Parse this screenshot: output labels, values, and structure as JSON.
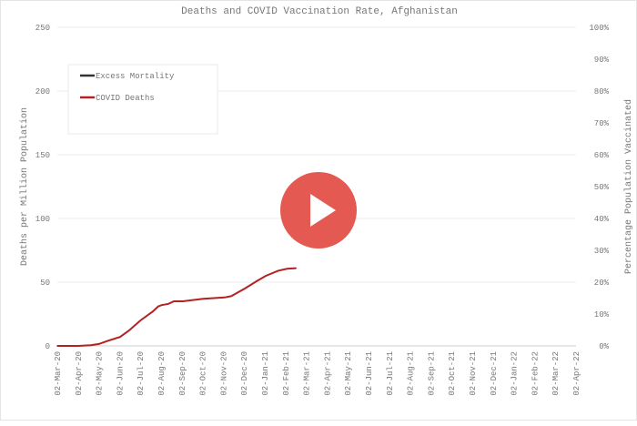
{
  "chart_data": {
    "type": "line",
    "title": "Deaths and COVID Vaccination Rate, Afghanistan",
    "ylabel": "Deaths per Million Population",
    "y2label": "Percentage Population Vaccinated",
    "ylim": [
      0,
      250
    ],
    "yticks": [
      "0",
      "50",
      "100",
      "150",
      "200",
      "250"
    ],
    "y2lim": [
      0,
      100
    ],
    "y2ticks": [
      "0%",
      "10%",
      "20%",
      "30%",
      "40%",
      "50%",
      "60%",
      "70%",
      "80%",
      "90%",
      "100%"
    ],
    "xticks": [
      "02-Mar-20",
      "02-Apr-20",
      "02-May-20",
      "02-Jun-20",
      "02-Jul-20",
      "02-Aug-20",
      "02-Sep-20",
      "02-Oct-20",
      "02-Nov-20",
      "02-Dec-20",
      "02-Jan-21",
      "02-Feb-21",
      "02-Mar-21",
      "02-Apr-21",
      "02-May-21",
      "02-Jun-21",
      "02-Jul-21",
      "02-Aug-21",
      "02-Sep-21",
      "02-Oct-21",
      "02-Nov-21",
      "02-Dec-21",
      "02-Jan-22",
      "02-Feb-22",
      "02-Mar-22",
      "02-Apr-22"
    ],
    "grid": true,
    "legend_position": "top-left",
    "series": [
      {
        "name": "Excess Mortality",
        "color": "#333333",
        "x": [],
        "y": []
      },
      {
        "name": "COVID Deaths",
        "color": "#b22222",
        "x": [
          "2020-03-02",
          "2020-04-02",
          "2020-04-20",
          "2020-05-02",
          "2020-05-15",
          "2020-06-02",
          "2020-06-15",
          "2020-07-02",
          "2020-07-20",
          "2020-07-28",
          "2020-08-02",
          "2020-08-12",
          "2020-08-20",
          "2020-09-02",
          "2020-10-02",
          "2020-11-02",
          "2020-11-12",
          "2020-12-02",
          "2020-12-20",
          "2021-01-02",
          "2021-01-20",
          "2021-02-02",
          "2021-02-15"
        ],
        "y": [
          0,
          0,
          0.5,
          1.5,
          4,
          7,
          12,
          20,
          27,
          31,
          32,
          33,
          35,
          35,
          37,
          38,
          39,
          45,
          51,
          55,
          59,
          60.5,
          61
        ]
      }
    ]
  },
  "video": {
    "play_icon": "play-icon"
  }
}
